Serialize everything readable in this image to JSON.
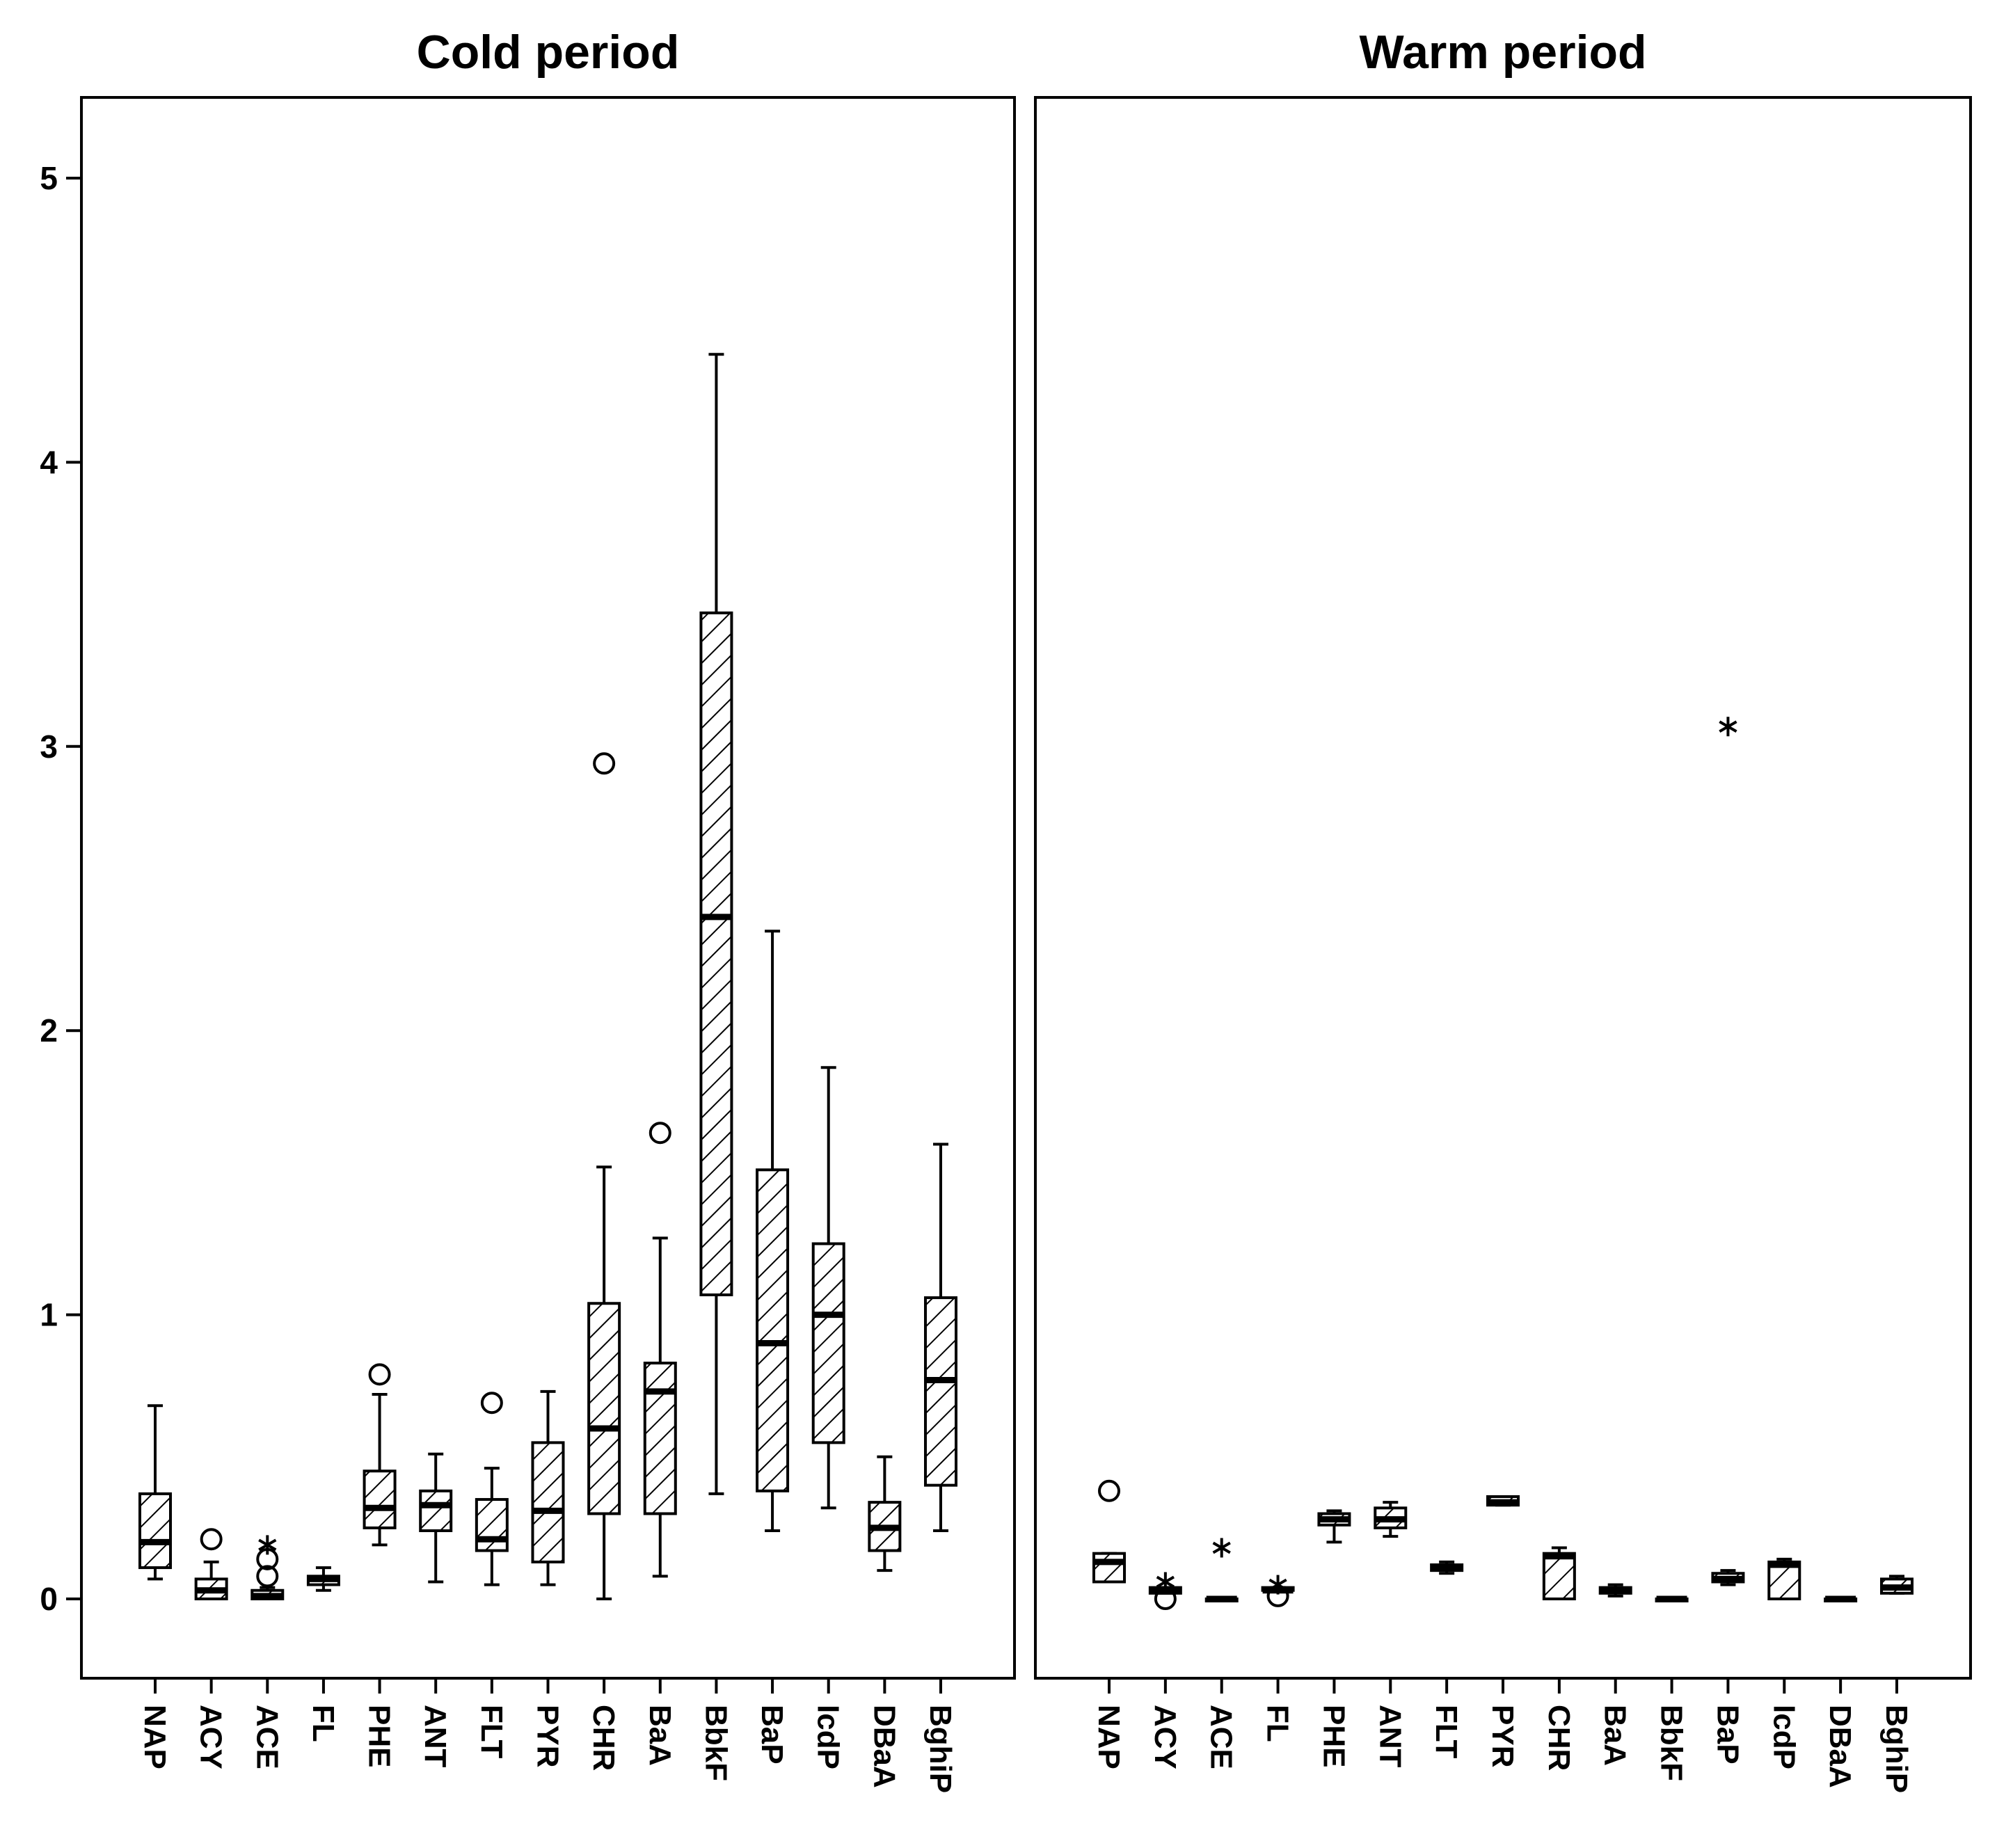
{
  "chart_data": {
    "type": "boxplot",
    "y_axis": {
      "min": -0.27,
      "max": 5.3,
      "ticks": [
        0,
        1,
        2,
        3,
        4,
        5
      ]
    },
    "categories": [
      "NAP",
      "ACY",
      "ACE",
      "FL",
      "PHE",
      "ANT",
      "FLT",
      "PYR",
      "CHR",
      "BaA",
      "BbkF",
      "BaP",
      "IcdP",
      "DBaA",
      "BghiP"
    ],
    "panels": [
      {
        "title": "Cold period",
        "boxes": [
          {
            "category": "NAP",
            "whisker_low": 0.07,
            "q1": 0.11,
            "median": 0.2,
            "q3": 0.37,
            "whisker_high": 0.68,
            "outliers": [],
            "extremes": []
          },
          {
            "category": "ACY",
            "whisker_low": 0.0,
            "q1": 0.0,
            "median": 0.03,
            "q3": 0.07,
            "whisker_high": 0.13,
            "outliers": [
              0.21
            ],
            "extremes": []
          },
          {
            "category": "ACE",
            "whisker_low": 0.0,
            "q1": 0.0,
            "median": 0.01,
            "q3": 0.03,
            "whisker_high": 0.04,
            "outliers": [
              0.08,
              0.14
            ],
            "extremes": [
              0.19
            ]
          },
          {
            "category": "FL",
            "whisker_low": 0.03,
            "q1": 0.05,
            "median": 0.07,
            "q3": 0.08,
            "whisker_high": 0.11,
            "outliers": [],
            "extremes": []
          },
          {
            "category": "PHE",
            "whisker_low": 0.19,
            "q1": 0.25,
            "median": 0.32,
            "q3": 0.45,
            "whisker_high": 0.72,
            "outliers": [
              0.79
            ],
            "extremes": []
          },
          {
            "category": "ANT",
            "whisker_low": 0.06,
            "q1": 0.24,
            "median": 0.33,
            "q3": 0.38,
            "whisker_high": 0.51,
            "outliers": [],
            "extremes": []
          },
          {
            "category": "FLT",
            "whisker_low": 0.05,
            "q1": 0.17,
            "median": 0.21,
            "q3": 0.35,
            "whisker_high": 0.46,
            "outliers": [
              0.69
            ],
            "extremes": []
          },
          {
            "category": "PYR",
            "whisker_low": 0.05,
            "q1": 0.13,
            "median": 0.31,
            "q3": 0.55,
            "whisker_high": 0.73,
            "outliers": [],
            "extremes": []
          },
          {
            "category": "CHR",
            "whisker_low": 0.0,
            "q1": 0.3,
            "median": 0.6,
            "q3": 1.04,
            "whisker_high": 1.52,
            "outliers": [
              2.94
            ],
            "extremes": []
          },
          {
            "category": "BaA",
            "whisker_low": 0.08,
            "q1": 0.3,
            "median": 0.73,
            "q3": 0.83,
            "whisker_high": 1.27,
            "outliers": [
              1.64
            ],
            "extremes": []
          },
          {
            "category": "BbkF",
            "whisker_low": 0.37,
            "q1": 1.07,
            "median": 2.4,
            "q3": 3.47,
            "whisker_high": 4.38,
            "outliers": [],
            "extremes": []
          },
          {
            "category": "BaP",
            "whisker_low": 0.24,
            "q1": 0.38,
            "median": 0.9,
            "q3": 1.51,
            "whisker_high": 2.35,
            "outliers": [],
            "extremes": []
          },
          {
            "category": "IcdP",
            "whisker_low": 0.32,
            "q1": 0.55,
            "median": 1.0,
            "q3": 1.25,
            "whisker_high": 1.87,
            "outliers": [],
            "extremes": []
          },
          {
            "category": "DBaA",
            "whisker_low": 0.1,
            "q1": 0.17,
            "median": 0.25,
            "q3": 0.34,
            "whisker_high": 0.5,
            "outliers": [],
            "extremes": []
          },
          {
            "category": "BghiP",
            "whisker_low": 0.24,
            "q1": 0.4,
            "median": 0.77,
            "q3": 1.06,
            "whisker_high": 1.6,
            "outliers": [],
            "extremes": []
          }
        ]
      },
      {
        "title": "Warm period",
        "boxes": [
          {
            "category": "NAP",
            "whisker_low": 0.06,
            "q1": 0.06,
            "median": 0.13,
            "q3": 0.16,
            "whisker_high": 0.16,
            "outliers": [
              0.38
            ],
            "extremes": []
          },
          {
            "category": "ACY",
            "whisker_low": 0.02,
            "q1": 0.02,
            "median": 0.03,
            "q3": 0.04,
            "whisker_high": 0.04,
            "outliers": [
              0.0
            ],
            "extremes": [
              0.06
            ]
          },
          {
            "category": "ACE",
            "whisker_low": 0.0,
            "q1": 0.0,
            "median": 0.0,
            "q3": 0.0,
            "whisker_high": 0.0,
            "outliers": [],
            "extremes": [
              0.18
            ]
          },
          {
            "category": "FL",
            "whisker_low": 0.03,
            "q1": 0.03,
            "median": 0.03,
            "q3": 0.04,
            "whisker_high": 0.04,
            "outliers": [
              0.01
            ],
            "extremes": [
              0.05
            ]
          },
          {
            "category": "PHE",
            "whisker_low": 0.2,
            "q1": 0.26,
            "median": 0.28,
            "q3": 0.3,
            "whisker_high": 0.31,
            "outliers": [],
            "extremes": []
          },
          {
            "category": "ANT",
            "whisker_low": 0.22,
            "q1": 0.25,
            "median": 0.28,
            "q3": 0.32,
            "whisker_high": 0.34,
            "outliers": [],
            "extremes": []
          },
          {
            "category": "FLT",
            "whisker_low": 0.09,
            "q1": 0.1,
            "median": 0.11,
            "q3": 0.12,
            "whisker_high": 0.13,
            "outliers": [],
            "extremes": []
          },
          {
            "category": "PYR",
            "whisker_low": 0.33,
            "q1": 0.33,
            "median": 0.34,
            "q3": 0.36,
            "whisker_high": 0.36,
            "outliers": [],
            "extremes": []
          },
          {
            "category": "CHR",
            "whisker_low": 0.0,
            "q1": 0.0,
            "median": 0.15,
            "q3": 0.16,
            "whisker_high": 0.18,
            "outliers": [],
            "extremes": []
          },
          {
            "category": "BaA",
            "whisker_low": 0.01,
            "q1": 0.02,
            "median": 0.03,
            "q3": 0.04,
            "whisker_high": 0.05,
            "outliers": [],
            "extremes": []
          },
          {
            "category": "BbkF",
            "whisker_low": 0.0,
            "q1": 0.0,
            "median": 0.0,
            "q3": 0.0,
            "whisker_high": 0.0,
            "outliers": [],
            "extremes": []
          },
          {
            "category": "BaP",
            "whisker_low": 0.05,
            "q1": 0.06,
            "median": 0.07,
            "q3": 0.09,
            "whisker_high": 0.1,
            "outliers": [],
            "extremes": [
              3.07
            ]
          },
          {
            "category": "IcdP",
            "whisker_low": 0.0,
            "q1": 0.0,
            "median": 0.12,
            "q3": 0.13,
            "whisker_high": 0.14,
            "outliers": [],
            "extremes": []
          },
          {
            "category": "DBaA",
            "whisker_low": 0.0,
            "q1": 0.0,
            "median": 0.0,
            "q3": 0.0,
            "whisker_high": 0.0,
            "outliers": [],
            "extremes": []
          },
          {
            "category": "BghiP",
            "whisker_low": 0.02,
            "q1": 0.02,
            "median": 0.04,
            "q3": 0.07,
            "whisker_high": 0.08,
            "outliers": [],
            "extremes": []
          }
        ]
      }
    ],
    "legend": null,
    "grid": false
  }
}
